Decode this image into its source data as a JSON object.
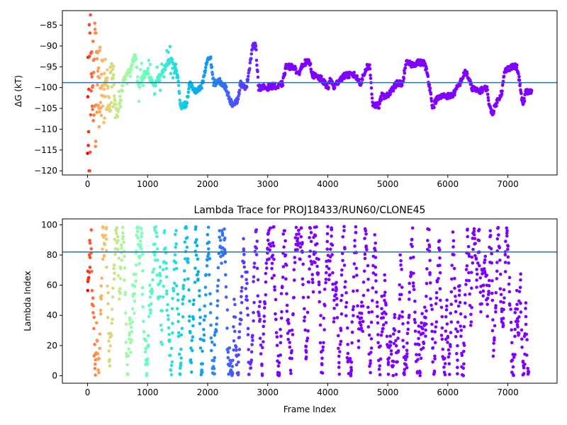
{
  "chart_data": [
    {
      "type": "scatter",
      "title": "",
      "xlabel": "",
      "ylabel": "ΔG (kT)",
      "xlim": [
        -420,
        7820
      ],
      "ylim": [
        -121,
        -81.5
      ],
      "xticks": [
        0,
        1000,
        2000,
        3000,
        4000,
        5000,
        6000,
        7000
      ],
      "yticks": [
        -120,
        -115,
        -110,
        -105,
        -100,
        -95,
        -90,
        -85
      ],
      "hline": -98.8,
      "hline_color": "#1f77b4",
      "colormap": "rainbow",
      "color_direction": "red at frame 0 to violet at late frames",
      "trace_anchors": [
        [
          0,
          -100
        ],
        [
          20,
          -110
        ],
        [
          40,
          -90
        ],
        [
          60,
          -100
        ],
        [
          80,
          -95
        ],
        [
          100,
          -105
        ],
        [
          130,
          -92
        ],
        [
          160,
          -108
        ],
        [
          200,
          -97
        ],
        [
          250,
          -103
        ],
        [
          300,
          -95
        ],
        [
          350,
          -104
        ],
        [
          400,
          -100
        ],
        [
          500,
          -106
        ],
        [
          600,
          -98
        ],
        [
          700,
          -96
        ],
        [
          800,
          -92
        ],
        [
          850,
          -100
        ],
        [
          900,
          -98
        ],
        [
          1000,
          -96
        ],
        [
          1100,
          -100
        ],
        [
          1200,
          -97
        ],
        [
          1300,
          -95
        ],
        [
          1400,
          -93
        ],
        [
          1500,
          -97
        ],
        [
          1550,
          -104.5
        ],
        [
          1650,
          -104
        ],
        [
          1700,
          -99
        ],
        [
          1800,
          -101
        ],
        [
          1900,
          -100
        ],
        [
          2000,
          -93
        ],
        [
          2050,
          -93
        ],
        [
          2100,
          -99
        ],
        [
          2200,
          -98.5
        ],
        [
          2300,
          -100
        ],
        [
          2350,
          -102
        ],
        [
          2400,
          -104
        ],
        [
          2500,
          -103
        ],
        [
          2550,
          -99
        ],
        [
          2600,
          -100
        ],
        [
          2650,
          -99.5
        ],
        [
          2750,
          -90
        ],
        [
          2800,
          -90
        ],
        [
          2850,
          -100
        ],
        [
          3000,
          -100
        ],
        [
          3100,
          -99.5
        ],
        [
          3150,
          -100
        ],
        [
          3250,
          -99
        ],
        [
          3300,
          -95
        ],
        [
          3450,
          -95
        ],
        [
          3500,
          -97
        ],
        [
          3600,
          -94
        ],
        [
          3700,
          -94
        ],
        [
          3750,
          -97
        ],
        [
          3900,
          -98
        ],
        [
          4000,
          -100
        ],
        [
          4050,
          -98
        ],
        [
          4100,
          -100
        ],
        [
          4200,
          -98
        ],
        [
          4300,
          -97
        ],
        [
          4450,
          -97
        ],
        [
          4550,
          -99
        ],
        [
          4650,
          -95
        ],
        [
          4700,
          -95
        ],
        [
          4750,
          -104
        ],
        [
          4850,
          -104.5
        ],
        [
          4900,
          -102
        ],
        [
          5000,
          -102
        ],
        [
          5050,
          -101
        ],
        [
          5150,
          -99
        ],
        [
          5250,
          -99
        ],
        [
          5300,
          -94
        ],
        [
          5400,
          -94.5
        ],
        [
          5500,
          -94
        ],
        [
          5600,
          -94
        ],
        [
          5650,
          -96
        ],
        [
          5700,
          -100
        ],
        [
          5750,
          -105
        ],
        [
          5800,
          -103
        ],
        [
          5900,
          -102
        ],
        [
          6050,
          -102
        ],
        [
          6100,
          -101.5
        ],
        [
          6200,
          -99
        ],
        [
          6300,
          -96
        ],
        [
          6400,
          -100
        ],
        [
          6500,
          -101
        ],
        [
          6650,
          -100
        ],
        [
          6700,
          -105
        ],
        [
          6750,
          -106
        ],
        [
          6800,
          -104
        ],
        [
          6900,
          -101
        ],
        [
          6950,
          -96
        ],
        [
          7050,
          -95
        ],
        [
          7150,
          -95
        ],
        [
          7200,
          -99
        ],
        [
          7250,
          -104.5
        ],
        [
          7300,
          -101
        ],
        [
          7400,
          -101
        ]
      ]
    },
    {
      "type": "scatter",
      "title": "Lambda Trace for PROJ18433/RUN60/CLONE45",
      "xlabel": "Frame Index",
      "ylabel": "Lambda Index",
      "xlim": [
        -420,
        7820
      ],
      "ylim": [
        -4.95,
        103.95
      ],
      "xticks": [
        0,
        1000,
        2000,
        3000,
        4000,
        5000,
        6000,
        7000
      ],
      "yticks": [
        0,
        20,
        40,
        60,
        80,
        100
      ],
      "hline": 82,
      "hline_color": "#1f77b4",
      "colormap": "rainbow",
      "color_direction": "red at frame 0 to violet at late frames",
      "value_range": [
        0,
        99
      ]
    }
  ]
}
